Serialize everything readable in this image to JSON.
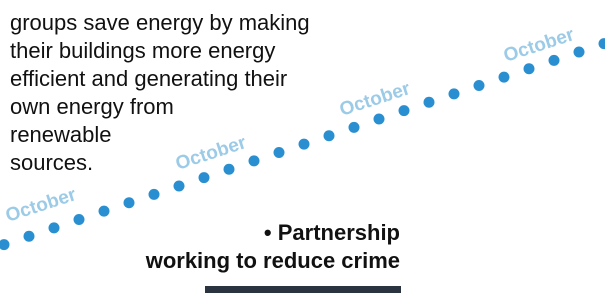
{
  "body_lines": [
    "groups save energy by making",
    "their buildings more energy",
    "efficient and generating their",
    "own energy from",
    "renewable",
    "sources."
  ],
  "watermark": [
    "October",
    "October",
    "October",
    "October"
  ],
  "heading_lines": [
    "• Partnership",
    "working to reduce crime"
  ]
}
